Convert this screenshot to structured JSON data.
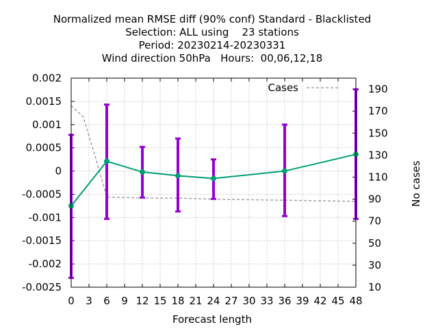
{
  "chart_data": {
    "type": "line",
    "title_lines": [
      "Normalized mean RMSE diff (90% conf) Standard - Blacklisted",
      "Selection: ALL using    23 stations",
      "Period: 20230214-20230331",
      "Wind direction 50hPa   Hours:  00,06,12,18"
    ],
    "xlabel": "Forecast length",
    "ylabel": "",
    "y2label": "No cases",
    "xlim": [
      0,
      48
    ],
    "ylim": [
      -0.0025,
      0.002
    ],
    "y2lim": [
      10,
      200
    ],
    "x_ticks": [
      "0",
      "3",
      "6",
      "9",
      "12",
      "15",
      "18",
      "21",
      "24",
      "27",
      "30",
      "33",
      "36",
      "39",
      "42",
      "45",
      "48"
    ],
    "y_ticks": [
      "0.002",
      "0.0015",
      "0.001",
      "0.0005",
      "0",
      "-0.0005",
      "-0.001",
      "-0.0015",
      "-0.002",
      "-0.0025"
    ],
    "y_tick_values": [
      0.002,
      0.0015,
      0.001,
      0.0005,
      0,
      -0.0005,
      -0.001,
      -0.0015,
      -0.002,
      -0.0025
    ],
    "y2_ticks": [
      "190",
      "170",
      "150",
      "130",
      "110",
      "90",
      "70",
      "50",
      "30",
      "10"
    ],
    "y2_tick_values": [
      190,
      170,
      150,
      130,
      110,
      90,
      70,
      50,
      30,
      10
    ],
    "grid": true,
    "legend_position": "top-right",
    "series": [
      {
        "kind": "diff",
        "x": [
          0,
          6,
          12,
          18,
          24,
          36,
          48
        ],
        "values": [
          -0.00075,
          0.00021,
          -2e-05,
          -0.0001,
          -0.00016,
          0.0,
          0.00036
        ],
        "error_low": [
          -0.0023,
          -0.00103,
          -0.00057,
          -0.00087,
          -0.0006,
          -0.00097,
          -0.00103
        ],
        "error_high": [
          0.00078,
          0.00143,
          0.00052,
          0.0007,
          0.00025,
          0.001,
          0.00176
        ],
        "color": "#009e73",
        "error_color": "#9400d3"
      },
      {
        "kind": "cases",
        "name": "Cases",
        "axis": "y2",
        "x": [
          0,
          2,
          4,
          6,
          12,
          18,
          24,
          36,
          48
        ],
        "values": [
          175,
          165,
          130,
          92,
          91,
          91,
          90,
          89,
          88
        ],
        "color": "#a0a0a0"
      }
    ]
  }
}
